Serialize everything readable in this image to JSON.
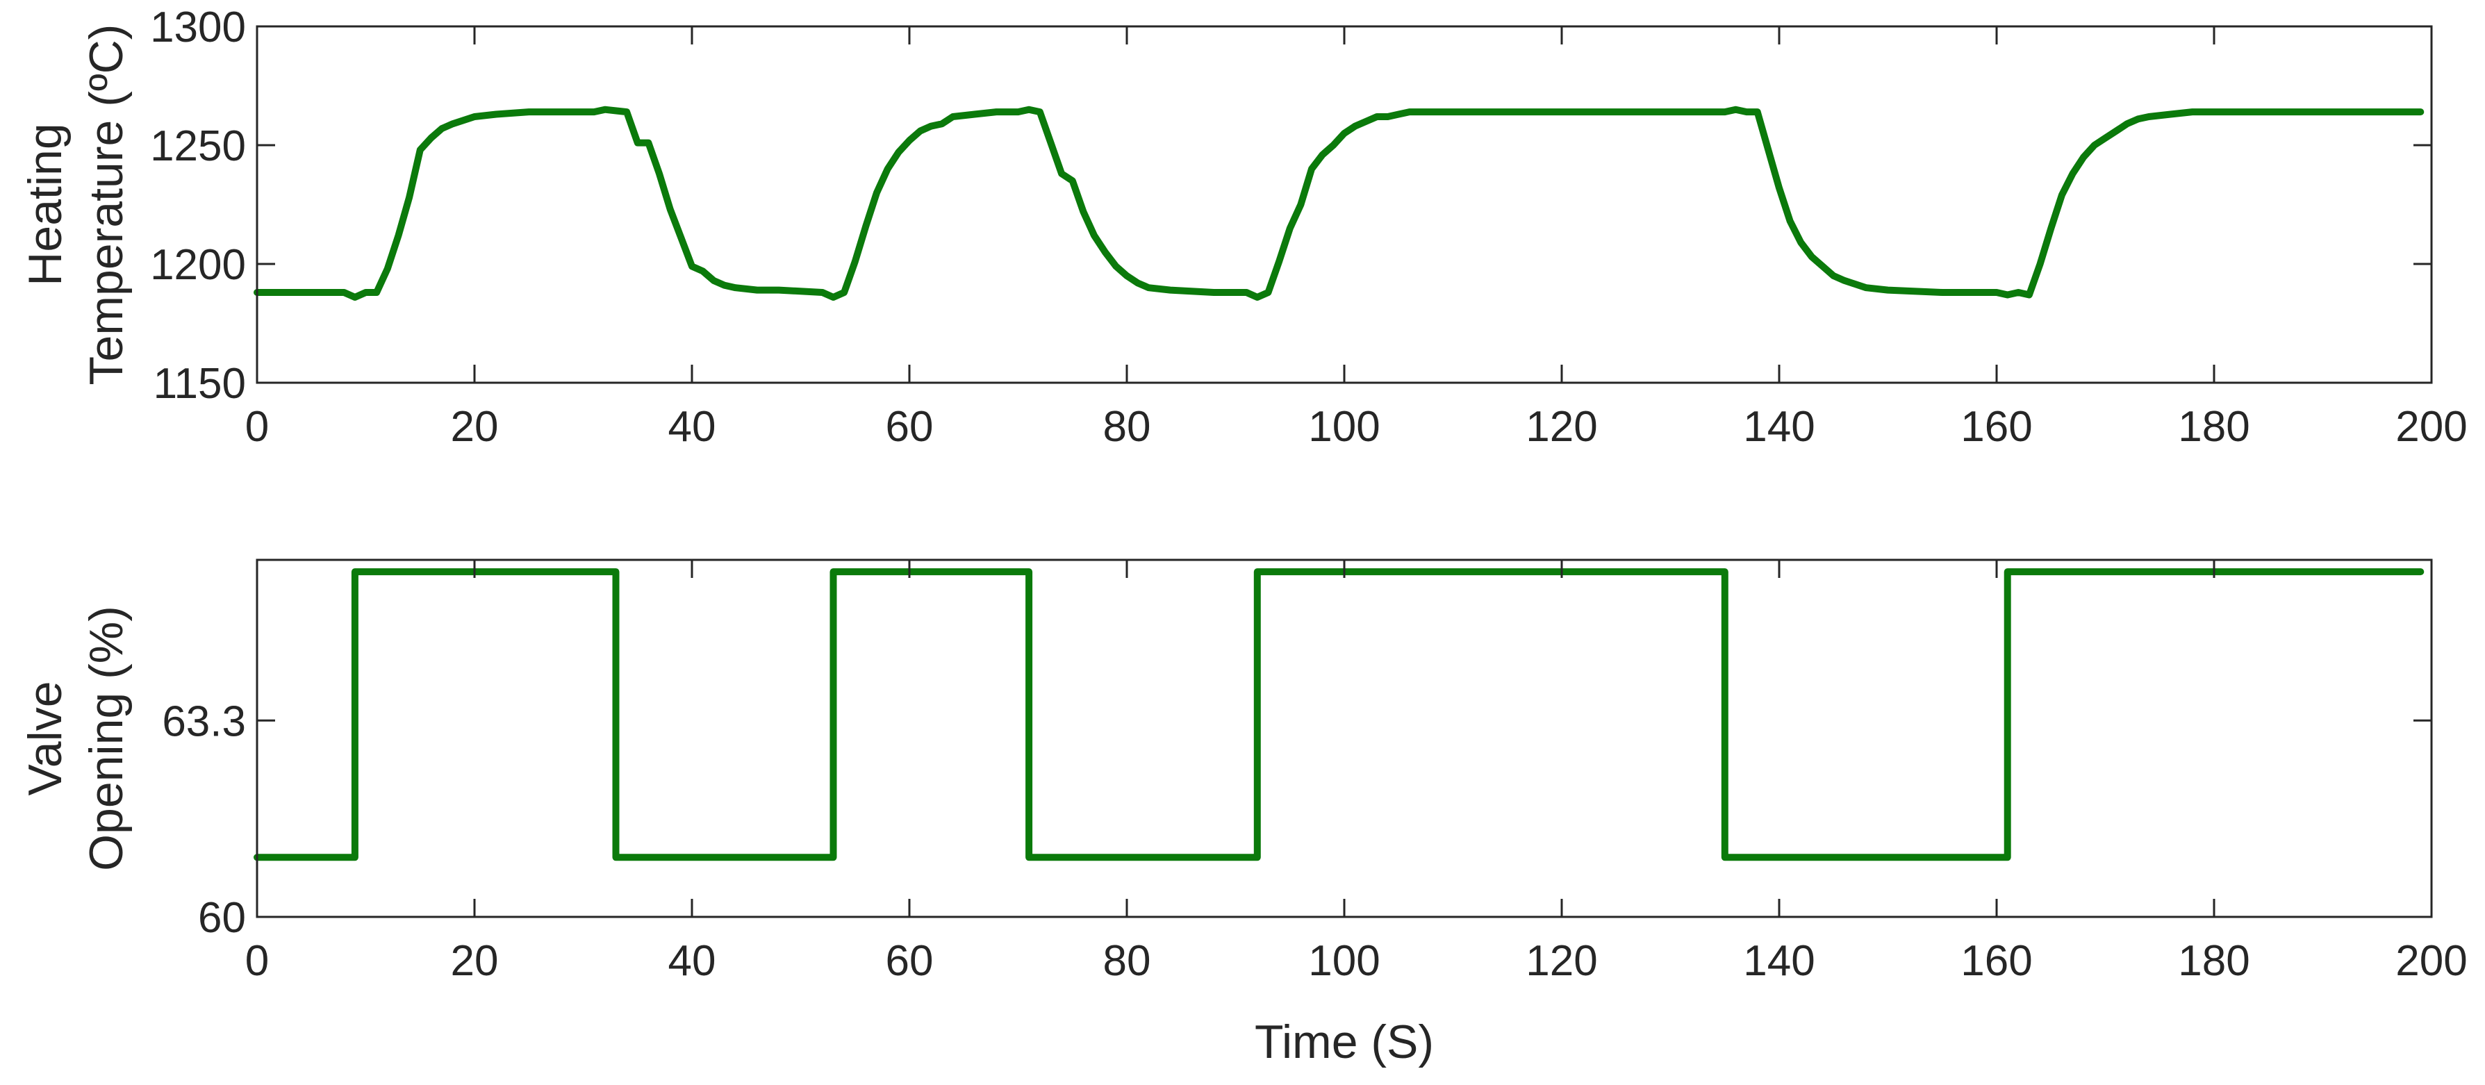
{
  "chart_data": [
    {
      "type": "line",
      "title": "",
      "xlabel": "",
      "ylabel": [
        "Heating",
        "Temperature (ºC)"
      ],
      "xlim": [
        0,
        200
      ],
      "ylim": [
        1150,
        1300
      ],
      "xticks": [
        0,
        20,
        40,
        60,
        80,
        100,
        120,
        140,
        160,
        180,
        200
      ],
      "yticks": [
        1150,
        1200,
        1250,
        1300
      ],
      "xtick_labels": [
        "0",
        "20",
        "40",
        "60",
        "80",
        "100",
        "120",
        "140",
        "160",
        "180",
        "200"
      ],
      "ytick_labels": [
        "1150",
        "1200",
        "1250",
        "1300"
      ],
      "grid": false,
      "series": [
        {
          "color": "#0b7a0b",
          "x": [
            0,
            8,
            9,
            10,
            11,
            12,
            13,
            14,
            15,
            16,
            17,
            18,
            20,
            22,
            25,
            28,
            31,
            32,
            34,
            35,
            36,
            37,
            38,
            39,
            40,
            41,
            42,
            43,
            44,
            46,
            48,
            52,
            53,
            54,
            55,
            56,
            57,
            58,
            59,
            60,
            61,
            62,
            63,
            64,
            66,
            68,
            70,
            71,
            72,
            73,
            74,
            75,
            76,
            77,
            78,
            79,
            80,
            81,
            82,
            84,
            88,
            91,
            92,
            93,
            94,
            95,
            96,
            97,
            98,
            99,
            100,
            101,
            102,
            103,
            104,
            105,
            106,
            110,
            120,
            130,
            134,
            135,
            136,
            137,
            138,
            139,
            140,
            141,
            142,
            143,
            144,
            145,
            146,
            148,
            150,
            155,
            160,
            161,
            162,
            163,
            164,
            165,
            166,
            167,
            168,
            169,
            170,
            171,
            172,
            173,
            174,
            176,
            178,
            185,
            190,
            199
          ],
          "y": [
            1188,
            1188,
            1186,
            1188,
            1188,
            1198,
            1212,
            1228,
            1248,
            1253,
            1257,
            1259,
            1262,
            1263,
            1264,
            1264,
            1264,
            1265,
            1264,
            1251,
            1251,
            1238,
            1223,
            1211,
            1199,
            1197,
            1193,
            1191,
            1190,
            1189,
            1189,
            1188,
            1186,
            1188,
            1201,
            1216,
            1230,
            1240,
            1247,
            1252,
            1256,
            1258,
            1259,
            1262,
            1263,
            1264,
            1264,
            1265,
            1264,
            1251,
            1238,
            1235,
            1222,
            1212,
            1205,
            1199,
            1195,
            1192,
            1190,
            1189,
            1188,
            1188,
            1186,
            1188,
            1201,
            1215,
            1225,
            1240,
            1246,
            1250,
            1255,
            1258,
            1260,
            1262,
            1262,
            1263,
            1264,
            1264,
            1264,
            1264,
            1264,
            1264,
            1265,
            1264,
            1264,
            1248,
            1232,
            1218,
            1209,
            1203,
            1199,
            1195,
            1193,
            1190,
            1189,
            1188,
            1188,
            1187,
            1188,
            1187,
            1200,
            1215,
            1229,
            1238,
            1245,
            1250,
            1253,
            1256,
            1259,
            1261,
            1262,
            1263,
            1264,
            1264,
            1264,
            1264
          ]
        }
      ]
    },
    {
      "type": "line",
      "title": "",
      "xlabel": "Time (S)",
      "ylabel": [
        "Valve",
        "Opening (%)"
      ],
      "xlim": [
        0,
        200
      ],
      "ylim": [
        60,
        66
      ],
      "xticks": [
        0,
        20,
        40,
        60,
        80,
        100,
        120,
        140,
        160,
        180,
        200
      ],
      "yticks": [
        60,
        63.3
      ],
      "xtick_labels": [
        "0",
        "20",
        "40",
        "60",
        "80",
        "100",
        "120",
        "140",
        "160",
        "180",
        "200"
      ],
      "ytick_labels": [
        "60",
        "63.3"
      ],
      "grid": false,
      "series": [
        {
          "color": "#0b7a0b",
          "x": [
            0,
            9,
            9,
            33,
            33,
            53,
            53,
            71,
            71,
            92,
            92,
            135,
            135,
            161,
            161,
            199
          ],
          "y": [
            61,
            61,
            65.8,
            65.8,
            61,
            61,
            65.8,
            65.8,
            61,
            61,
            65.8,
            65.8,
            61,
            61,
            65.8,
            65.8
          ]
        }
      ]
    }
  ]
}
